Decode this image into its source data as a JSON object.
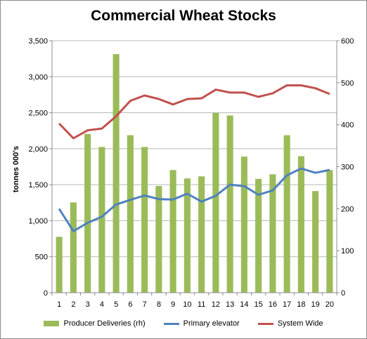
{
  "chart_data": {
    "type": "bar+line",
    "title": "Commercial Wheat Stocks",
    "ylabel": "tonnes 000's",
    "y2label": "",
    "x": [
      "1",
      "2",
      "3",
      "4",
      "5",
      "6",
      "7",
      "8",
      "9",
      "10",
      "11",
      "12",
      "13",
      "14",
      "15",
      "16",
      "17",
      "18",
      "19",
      "20"
    ],
    "ylim": [
      0,
      3500
    ],
    "y_ticks": [
      "0",
      "500",
      "1,000",
      "1,500",
      "2,000",
      "2,500",
      "3,000",
      "3,500"
    ],
    "y2lim": [
      0,
      600
    ],
    "y2_ticks": [
      "0",
      "100",
      "200",
      "300",
      "400",
      "500",
      "600"
    ],
    "grid": true,
    "legend_position": "bottom",
    "series": [
      {
        "name": "Producer Deliveries (rh)",
        "type": "bar",
        "axis": "right",
        "color": "#9bbb59",
        "values": [
          133,
          215,
          378,
          347,
          568,
          375,
          347,
          254,
          292,
          272,
          277,
          428,
          422,
          324,
          271,
          282,
          375,
          325,
          242,
          292
        ]
      },
      {
        "name": "Primary elevator",
        "type": "line",
        "axis": "left",
        "color": "#4f81bd",
        "values": [
          1165,
          855,
          970,
          1055,
          1225,
          1290,
          1350,
          1300,
          1295,
          1375,
          1265,
          1345,
          1500,
          1480,
          1360,
          1420,
          1630,
          1725,
          1665,
          1705
        ]
      },
      {
        "name": "System Wide",
        "type": "line",
        "axis": "left",
        "color": "#c0504d",
        "values": [
          2350,
          2145,
          2255,
          2280,
          2450,
          2665,
          2740,
          2690,
          2615,
          2690,
          2700,
          2820,
          2780,
          2780,
          2720,
          2770,
          2880,
          2880,
          2840,
          2760
        ]
      }
    ]
  }
}
